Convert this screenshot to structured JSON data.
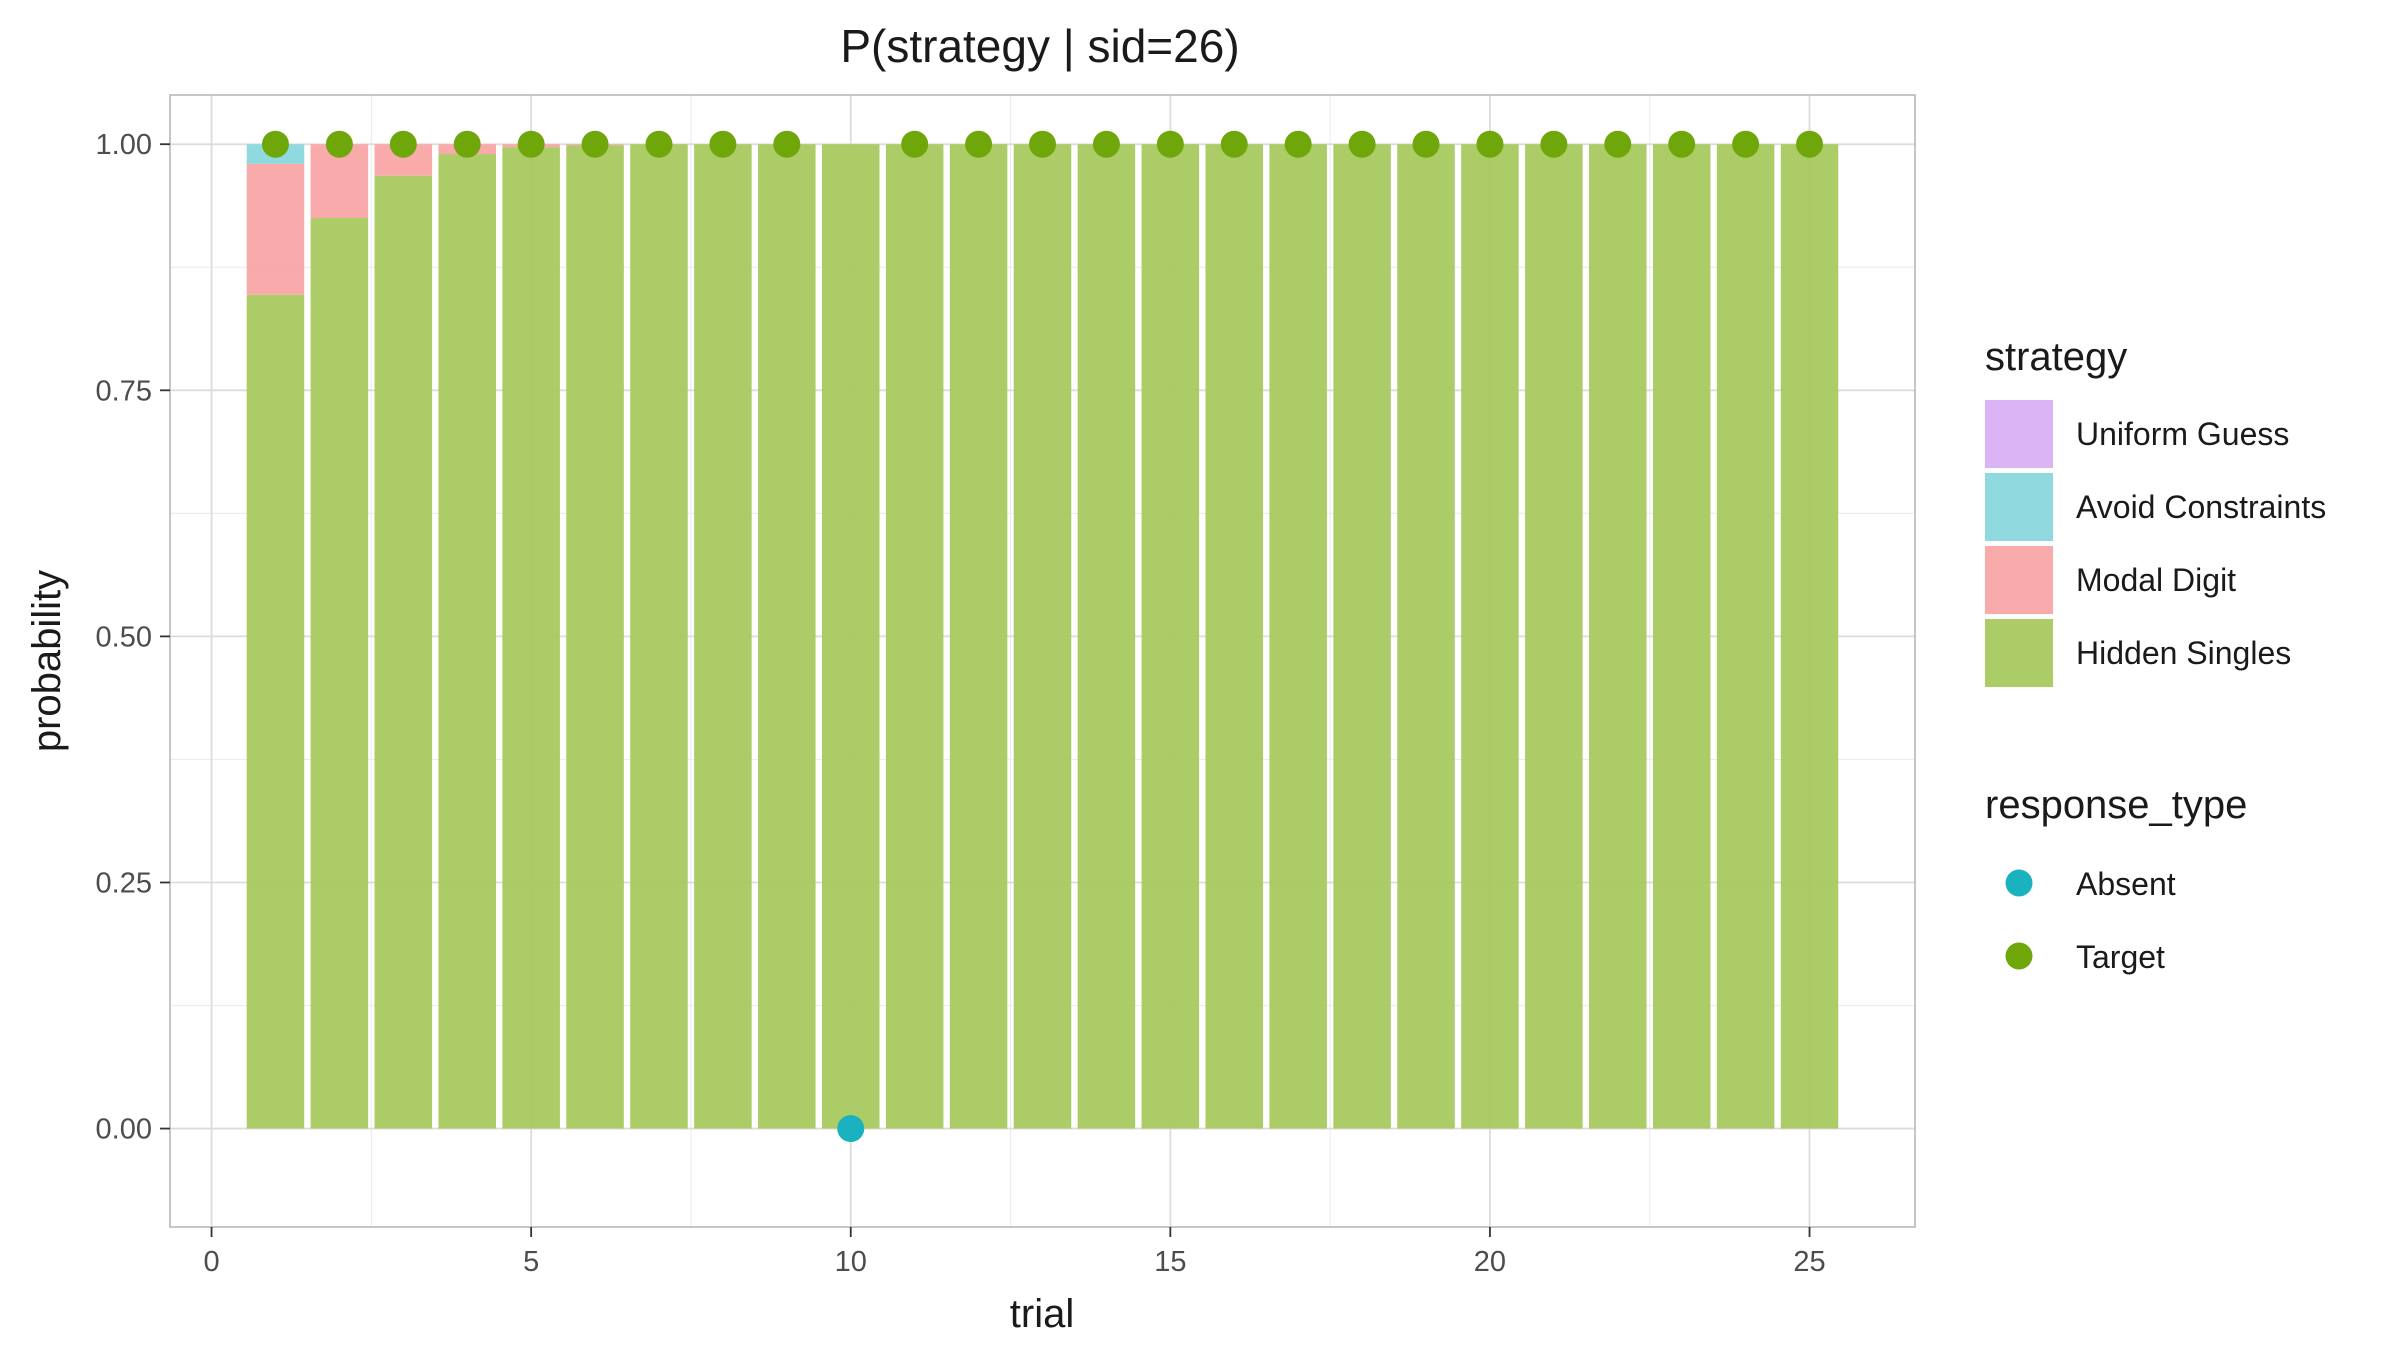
{
  "chart_data": {
    "type": "bar",
    "title": "P(strategy | sid=26)",
    "xlabel": "trial",
    "ylabel": "probability",
    "xlim": [
      -0.65,
      26.65
    ],
    "ylim": [
      -0.1,
      1.05
    ],
    "x_ticks": [
      0,
      5,
      10,
      15,
      20,
      25
    ],
    "y_ticks": [
      0,
      0.25,
      0.5,
      0.75,
      1.0
    ],
    "y_tick_labels": [
      "0.00",
      "0.25",
      "0.50",
      "0.75",
      "1.00"
    ],
    "grid": true,
    "stacked": true,
    "trials": [
      1,
      2,
      3,
      4,
      5,
      6,
      7,
      8,
      9,
      10,
      11,
      12,
      13,
      14,
      15,
      16,
      17,
      18,
      19,
      20,
      21,
      22,
      23,
      24,
      25
    ],
    "series": [
      {
        "name": "Hidden Singles",
        "color": "#a5c85a",
        "values": [
          0.847,
          0.925,
          0.968,
          0.99,
          0.997,
          0.999,
          1,
          1,
          1,
          1,
          1,
          1,
          1,
          1,
          1,
          1,
          1,
          1,
          1,
          1,
          1,
          1,
          1,
          1,
          1
        ]
      },
      {
        "name": "Modal Digit",
        "color": "#f8a3a3",
        "values": [
          0.133,
          0.075,
          0.032,
          0.01,
          0.003,
          0.001,
          0,
          0,
          0,
          0,
          0,
          0,
          0,
          0,
          0,
          0,
          0,
          0,
          0,
          0,
          0,
          0,
          0,
          0,
          0
        ]
      },
      {
        "name": "Avoid Constraints",
        "color": "#87d7dc",
        "values": [
          0.02,
          0,
          0,
          0,
          0,
          0,
          0,
          0,
          0,
          0,
          0,
          0,
          0,
          0,
          0,
          0,
          0,
          0,
          0,
          0,
          0,
          0,
          0,
          0,
          0
        ]
      },
      {
        "name": "Uniform Guess",
        "color": "#d8aef5",
        "values": [
          0,
          0,
          0,
          0,
          0,
          0,
          0,
          0,
          0,
          0,
          0,
          0,
          0,
          0,
          0,
          0,
          0,
          0,
          0,
          0,
          0,
          0,
          0,
          0,
          0
        ]
      }
    ],
    "points": {
      "legend_title": "response_type",
      "categories": [
        {
          "name": "Absent",
          "color": "#19b2be"
        },
        {
          "name": "Target",
          "color": "#6fa70a"
        }
      ],
      "data": [
        {
          "x": 1,
          "y": 1,
          "type": "Target"
        },
        {
          "x": 2,
          "y": 1,
          "type": "Target"
        },
        {
          "x": 3,
          "y": 1,
          "type": "Target"
        },
        {
          "x": 4,
          "y": 1,
          "type": "Target"
        },
        {
          "x": 5,
          "y": 1,
          "type": "Target"
        },
        {
          "x": 6,
          "y": 1,
          "type": "Target"
        },
        {
          "x": 7,
          "y": 1,
          "type": "Target"
        },
        {
          "x": 8,
          "y": 1,
          "type": "Target"
        },
        {
          "x": 9,
          "y": 1,
          "type": "Target"
        },
        {
          "x": 10,
          "y": 0,
          "type": "Absent"
        },
        {
          "x": 11,
          "y": 1,
          "type": "Target"
        },
        {
          "x": 12,
          "y": 1,
          "type": "Target"
        },
        {
          "x": 13,
          "y": 1,
          "type": "Target"
        },
        {
          "x": 14,
          "y": 1,
          "type": "Target"
        },
        {
          "x": 15,
          "y": 1,
          "type": "Target"
        },
        {
          "x": 16,
          "y": 1,
          "type": "Target"
        },
        {
          "x": 17,
          "y": 1,
          "type": "Target"
        },
        {
          "x": 18,
          "y": 1,
          "type": "Target"
        },
        {
          "x": 19,
          "y": 1,
          "type": "Target"
        },
        {
          "x": 20,
          "y": 1,
          "type": "Target"
        },
        {
          "x": 21,
          "y": 1,
          "type": "Target"
        },
        {
          "x": 22,
          "y": 1,
          "type": "Target"
        },
        {
          "x": 23,
          "y": 1,
          "type": "Target"
        },
        {
          "x": 24,
          "y": 1,
          "type": "Target"
        },
        {
          "x": 25,
          "y": 1,
          "type": "Target"
        }
      ]
    },
    "legend": {
      "fill_title": "strategy",
      "fill_order": [
        "Uniform Guess",
        "Avoid Constraints",
        "Modal Digit",
        "Hidden Singles"
      ],
      "placement": "right"
    }
  }
}
